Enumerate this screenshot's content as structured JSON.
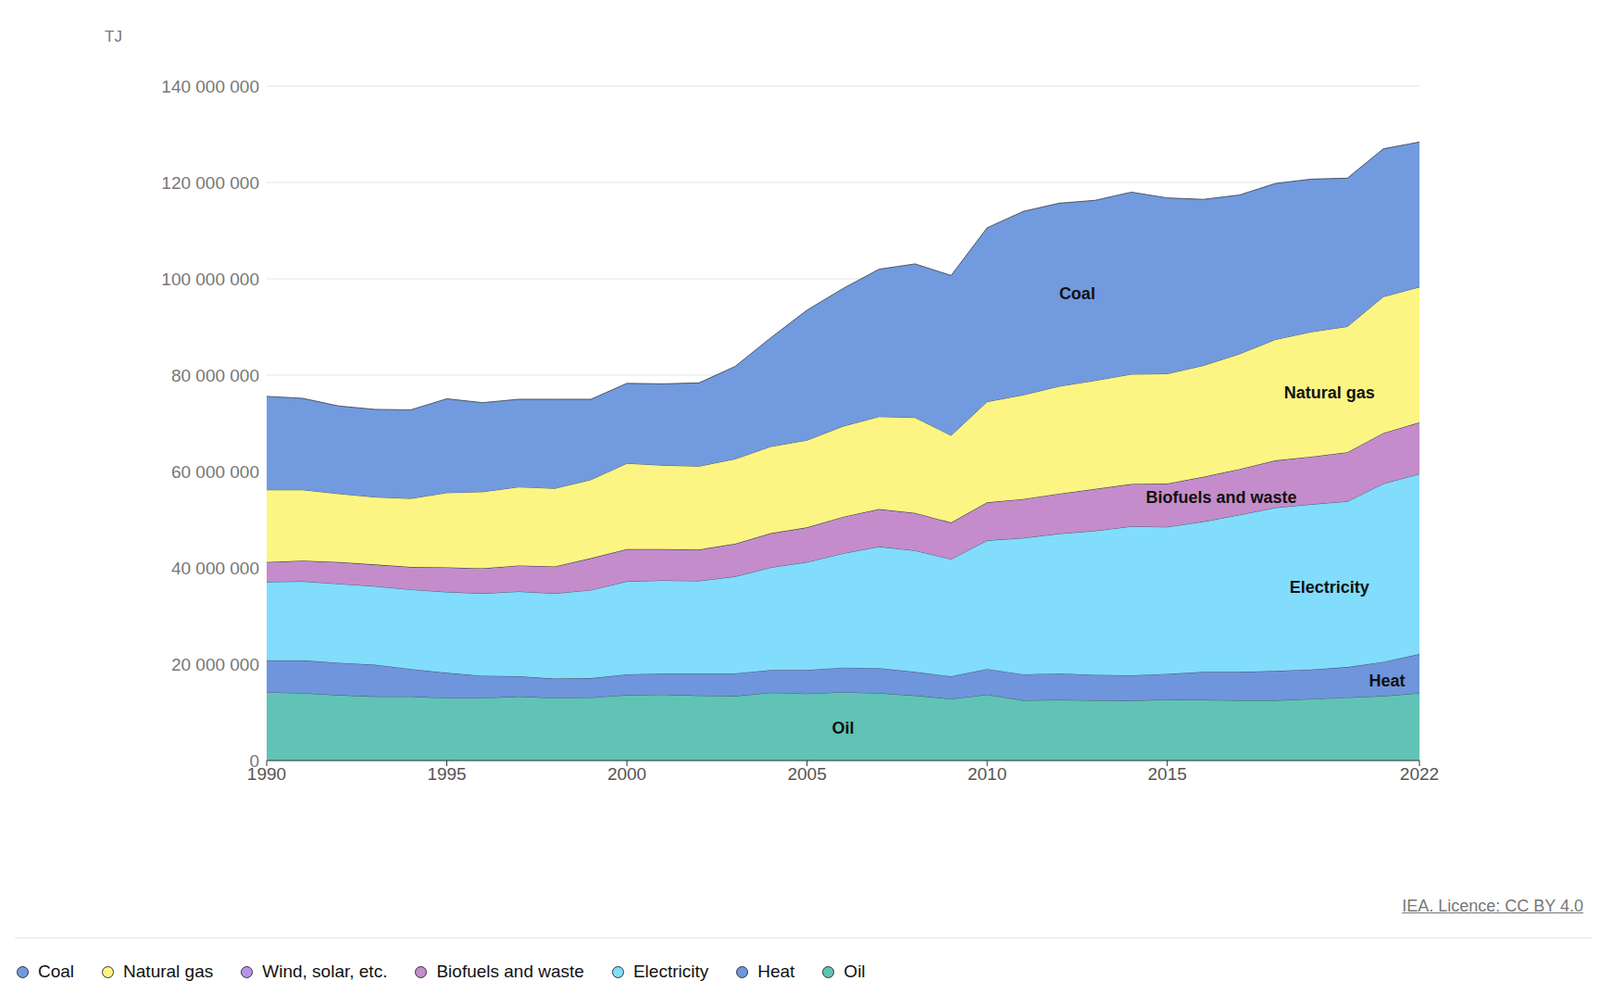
{
  "chart_data": {
    "type": "area",
    "stacked": true,
    "y_label": "TJ",
    "source": "IEA. Licence: CC BY 4.0",
    "legend": "bottom",
    "grid": true,
    "x": [
      1990,
      1991,
      1992,
      1993,
      1994,
      1995,
      1996,
      1997,
      1998,
      1999,
      2000,
      2001,
      2002,
      2003,
      2004,
      2005,
      2006,
      2007,
      2008,
      2009,
      2010,
      2011,
      2012,
      2013,
      2014,
      2015,
      2016,
      2017,
      2018,
      2019,
      2020,
      2021,
      2022
    ],
    "xlim": [
      1990,
      2022
    ],
    "xticks": [
      1990,
      1995,
      2000,
      2005,
      2010,
      2015,
      2022
    ],
    "ylim": [
      0,
      140000000
    ],
    "yticks": [
      {
        "value": 0,
        "label": "0"
      },
      {
        "value": 20000000,
        "label": "20 000 000"
      },
      {
        "value": 40000000,
        "label": "40 000 000"
      },
      {
        "value": 60000000,
        "label": "60 000 000"
      },
      {
        "value": 80000000,
        "label": "80 000 000"
      },
      {
        "value": 100000000,
        "label": "100 000 000"
      },
      {
        "value": 120000000,
        "label": "120 000 000"
      },
      {
        "value": 140000000,
        "label": "140 000 000"
      }
    ],
    "series": [
      {
        "name": "Coal",
        "color": "#729ade",
        "values": [
          19400000,
          19000000,
          18200000,
          18200000,
          18400000,
          19500000,
          18500000,
          18200000,
          18500000,
          16700000,
          16600000,
          16900000,
          17300000,
          19200000,
          22600000,
          27000000,
          28600000,
          30600000,
          31900000,
          33200000,
          36100000,
          38100000,
          38000000,
          37400000,
          37800000,
          36500000,
          34500000,
          33000000,
          32400000,
          31700000,
          30800000,
          30700000,
          30100000
        ]
      },
      {
        "name": "Natural gas",
        "color": "#fcf584",
        "values": [
          15000000,
          14700000,
          14200000,
          14000000,
          14200000,
          15500000,
          15900000,
          16300000,
          16200000,
          16300000,
          17800000,
          17400000,
          17300000,
          17600000,
          18000000,
          18100000,
          18800000,
          19200000,
          19800000,
          18100000,
          20900000,
          21600000,
          22300000,
          22500000,
          22800000,
          22800000,
          23100000,
          23900000,
          25100000,
          25900000,
          26100000,
          28300000,
          28100000
        ]
      },
      {
        "name": "Wind, solar, etc.",
        "color": "#b695e8",
        "values": [
          0,
          0,
          0,
          0,
          0,
          0,
          0,
          0,
          0,
          0,
          0,
          0,
          0,
          0,
          0,
          0,
          0,
          0,
          0,
          0,
          0,
          0,
          0,
          0,
          0,
          0,
          0,
          0,
          0,
          0,
          0,
          0,
          0
        ]
      },
      {
        "name": "Biofuels and waste",
        "color": "#c48ccb",
        "values": [
          4100000,
          4300000,
          4500000,
          4500000,
          4700000,
          5100000,
          5200000,
          5400000,
          5600000,
          6600000,
          6700000,
          6500000,
          6500000,
          6800000,
          7100000,
          7200000,
          7600000,
          7800000,
          7800000,
          7600000,
          7900000,
          8100000,
          8300000,
          8700000,
          8800000,
          9000000,
          9300000,
          9500000,
          9800000,
          9900000,
          10200000,
          10500000,
          10700000
        ]
      },
      {
        "name": "Electricity",
        "color": "#82dcfc",
        "values": [
          16300000,
          16400000,
          16400000,
          16300000,
          16500000,
          16800000,
          17100000,
          17600000,
          17700000,
          18300000,
          19300000,
          19300000,
          19200000,
          20100000,
          21300000,
          22400000,
          23700000,
          25200000,
          25200000,
          24300000,
          26700000,
          28300000,
          29000000,
          29900000,
          30900000,
          30500000,
          31200000,
          32600000,
          33900000,
          34300000,
          34400000,
          37000000,
          37400000
        ]
      },
      {
        "name": "Heat",
        "color": "#6f95dc",
        "values": [
          6600000,
          6800000,
          6700000,
          6600000,
          5700000,
          5200000,
          4600000,
          4200000,
          4000000,
          4000000,
          4300000,
          4400000,
          4600000,
          4700000,
          4700000,
          4900000,
          5100000,
          5200000,
          4900000,
          4700000,
          5300000,
          5400000,
          5500000,
          5300000,
          5300000,
          5300000,
          5800000,
          5900000,
          6100000,
          6100000,
          6300000,
          7100000,
          8100000
        ]
      },
      {
        "name": "Oil",
        "color": "#60c3b6",
        "values": [
          14200000,
          14000000,
          13600000,
          13300000,
          13300000,
          13000000,
          13000000,
          13300000,
          13000000,
          13100000,
          13600000,
          13700000,
          13500000,
          13400000,
          14100000,
          13900000,
          14200000,
          14000000,
          13500000,
          12800000,
          13700000,
          12500000,
          12600000,
          12500000,
          12400000,
          12700000,
          12600000,
          12500000,
          12500000,
          12800000,
          13100000,
          13400000,
          14000000
        ]
      }
    ],
    "annotations": [
      {
        "text": "Coal",
        "x": 2012.5,
        "y": 97000000
      },
      {
        "text": "Natural gas",
        "x": 2019.5,
        "y": 76500000
      },
      {
        "text": "Biofuels and waste",
        "x": 2016.5,
        "y": 54700000
      },
      {
        "text": "Electricity",
        "x": 2019.5,
        "y": 36000000
      },
      {
        "text": "Heat",
        "x": 2021.1,
        "y": 16700000
      },
      {
        "text": "Oil",
        "x": 2006,
        "y": 6800000
      }
    ]
  }
}
